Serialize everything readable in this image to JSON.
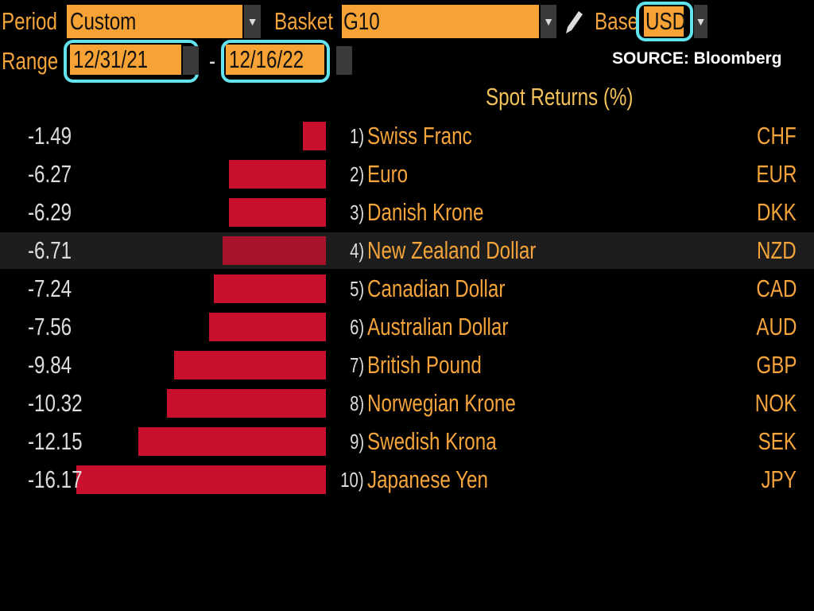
{
  "controls": {
    "period_label": "Period",
    "period": "Custom",
    "basket_label": "Basket",
    "basket": "G10",
    "base_label": "Base",
    "base": "USD",
    "range_label": "Range",
    "range_start": "12/31/21",
    "range_separator": "-",
    "range_end": "12/16/22",
    "source": "SOURCE: Bloomberg"
  },
  "chart_data": {
    "type": "bar",
    "orientation": "horizontal",
    "title": "Spot Returns (%)",
    "ranks": [
      "1)",
      "2)",
      "3)",
      "4)",
      "5)",
      "6)",
      "7)",
      "8)",
      "9)",
      "10)"
    ],
    "categories": [
      "Swiss Franc",
      "Euro",
      "Danish Krone",
      "New Zealand Dollar",
      "Canadian Dollar",
      "Australian Dollar",
      "British Pound",
      "Norwegian Krone",
      "Swedish Krona",
      "Japanese Yen"
    ],
    "codes": [
      "CHF",
      "EUR",
      "DKK",
      "NZD",
      "CAD",
      "AUD",
      "GBP",
      "NOK",
      "SEK",
      "JPY"
    ],
    "values": [
      -1.49,
      -6.27,
      -6.29,
      -6.71,
      -7.24,
      -7.56,
      -9.84,
      -10.32,
      -12.15,
      -16.17
    ],
    "color": "#c8102e"
  }
}
